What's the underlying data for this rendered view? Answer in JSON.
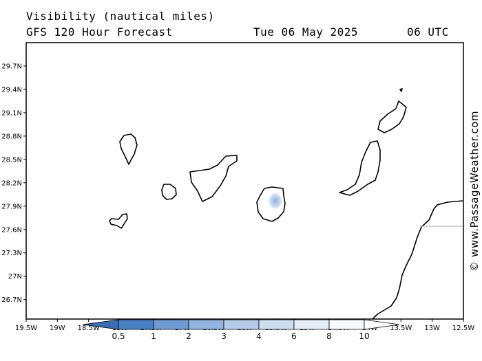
{
  "header": {
    "title": "Visibility (nautical miles)",
    "model": "GFS 120 Hour Forecast",
    "date": "Tue 06 May 2025",
    "time": "06 UTC"
  },
  "credit": "© www.PassageWeather.com",
  "map": {
    "lat_ticks": [
      "29.7N",
      "29.4N",
      "29.1N",
      "28.8N",
      "28.5N",
      "28.2N",
      "27.9N",
      "27.6N",
      "27.3N",
      "27N",
      "26.7N"
    ],
    "lon_ticks": [
      "19.5W",
      "19W",
      "18.5W",
      "18W",
      "17.5W",
      "17W",
      "16.5W",
      "16W",
      "15.5W",
      "15W",
      "14.5W",
      "14W",
      "13.5W",
      "13W",
      "12.5W"
    ],
    "lat_values": [
      29.7,
      29.4,
      29.1,
      28.8,
      28.5,
      28.2,
      27.9,
      27.6,
      27.3,
      27.0,
      26.7
    ],
    "lon_values": [
      -19.5,
      -19.0,
      -18.5,
      -18.0,
      -17.5,
      -17.0,
      -16.5,
      -16.0,
      -15.5,
      -15.0,
      -14.5,
      -14.0,
      -13.5,
      -13.0,
      -12.5
    ],
    "lon_range": [
      -19.5,
      -12.5
    ],
    "lat_range": [
      26.45,
      30.0
    ]
  },
  "colorbar": {
    "labels": [
      "0.5",
      "1",
      "2",
      "3",
      "4",
      "6",
      "8",
      "10"
    ],
    "colors": [
      "#3a6cb3",
      "#4a7fc2",
      "#6f9bd2",
      "#92b4de",
      "#b3cbe8",
      "#cedef1",
      "#e6eef8",
      "#f7f9fd",
      "#ffffff"
    ]
  }
}
